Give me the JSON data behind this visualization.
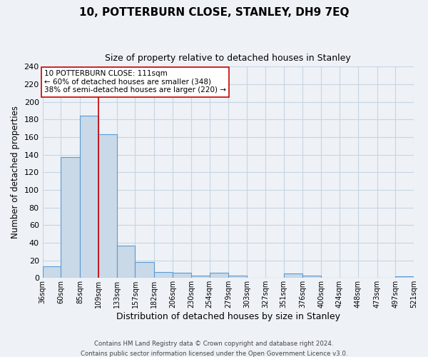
{
  "title": "10, POTTERBURN CLOSE, STANLEY, DH9 7EQ",
  "subtitle": "Size of property relative to detached houses in Stanley",
  "xlabel": "Distribution of detached houses by size in Stanley",
  "ylabel": "Number of detached properties",
  "bar_color": "#c9d9e8",
  "bar_edge_color": "#5b9bd5",
  "bin_edges": [
    36,
    60,
    85,
    109,
    133,
    157,
    182,
    206,
    230,
    254,
    279,
    303,
    327,
    351,
    376,
    400,
    424,
    448,
    473,
    497,
    521
  ],
  "bin_labels": [
    "36sqm",
    "60sqm",
    "85sqm",
    "109sqm",
    "133sqm",
    "157sqm",
    "182sqm",
    "206sqm",
    "230sqm",
    "254sqm",
    "279sqm",
    "303sqm",
    "327sqm",
    "351sqm",
    "376sqm",
    "400sqm",
    "424sqm",
    "448sqm",
    "473sqm",
    "497sqm",
    "521sqm"
  ],
  "counts": [
    13,
    137,
    184,
    163,
    37,
    18,
    7,
    6,
    3,
    6,
    3,
    0,
    0,
    5,
    3,
    0,
    0,
    0,
    0,
    2
  ],
  "vline_x": 109,
  "vline_color": "#cc0000",
  "annotation_title": "10 POTTERBURN CLOSE: 111sqm",
  "annotation_line1": "← 60% of detached houses are smaller (348)",
  "annotation_line2": "38% of semi-detached houses are larger (220) →",
  "annotation_box_color": "white",
  "annotation_box_edge": "#cc0000",
  "ylim": [
    0,
    240
  ],
  "yticks": [
    0,
    20,
    40,
    60,
    80,
    100,
    120,
    140,
    160,
    180,
    200,
    220,
    240
  ],
  "footer1": "Contains HM Land Registry data © Crown copyright and database right 2024.",
  "footer2": "Contains public sector information licensed under the Open Government Licence v3.0.",
  "bg_color": "#eef2f7",
  "plot_bg_color": "#eef2f7",
  "grid_color": "#c8d4e0"
}
